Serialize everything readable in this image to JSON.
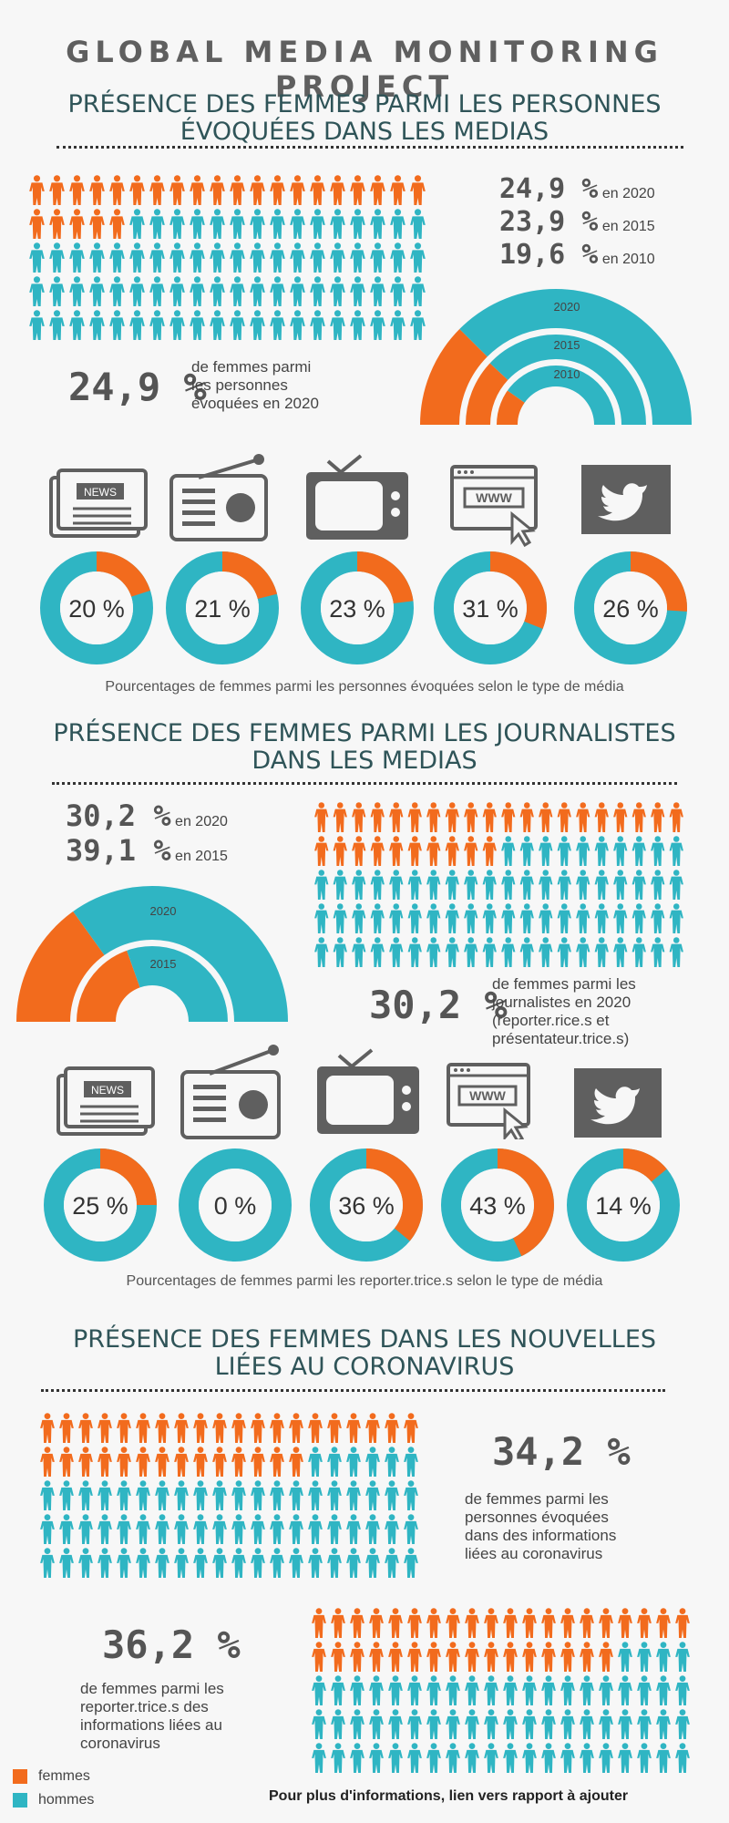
{
  "colors": {
    "women": "#f26b1d",
    "men": "#2fb5c3",
    "dark": "#5f5f5f",
    "text": "#444444"
  },
  "header": {
    "title": "GLOBAL MEDIA MONITORING PROJECT"
  },
  "section1": {
    "title_line1": "PRÉSENCE DES FEMMES PARMI LES PERSONNES",
    "title_line2": "ÉVOQUÉES DANS LES MEDIAS",
    "years": [
      {
        "value": "24,9 %",
        "label": "en 2020"
      },
      {
        "value": "23,9 %",
        "label": "en 2015"
      },
      {
        "value": "19,6 %",
        "label": "en 2010"
      }
    ],
    "big_value": "24,9 %",
    "desc_line1": "de femmes parmi",
    "desc_line2": "les personnes",
    "desc_line3": "évoquées en 2020",
    "caption": "Pourcentages de femmes parmi les personnes évoquées selon le type de média"
  },
  "section2": {
    "title_line1": "PRÉSENCE DES FEMMES PARMI LES JOURNALISTES",
    "title_line2": "DANS LES MEDIAS",
    "years": [
      {
        "value": "30,2 %",
        "label": "en 2020"
      },
      {
        "value": "39,1 %",
        "label": "en 2015"
      }
    ],
    "big_value": "30,2 %",
    "desc_line1": "de femmes parmi les",
    "desc_line2": "journalistes en 2020",
    "desc_line3": "(reporter.rice.s et",
    "desc_line4": "présentateur.trice.s)",
    "caption": "Pourcentages de femmes parmi les reporter.trice.s selon le type de média"
  },
  "section3": {
    "title_line1": "PRÉSENCE DES FEMMES DANS LES NOUVELLES",
    "title_line2": "LIÉES AU CORONAVIRUS",
    "value1": "34,2 %",
    "desc1_line1": "de femmes parmi les",
    "desc1_line2": "personnes évoquées",
    "desc1_line3": "dans des informations",
    "desc1_line4": "liées au coronavirus",
    "value2": "36,2 %",
    "desc2_line1": "de femmes parmi les",
    "desc2_line2": "reporter.trice.s des",
    "desc2_line3": "informations liées au",
    "desc2_line4": "coronavirus"
  },
  "legend": {
    "women": "femmes",
    "men": "hommes"
  },
  "footer": "Pour plus d'informations, lien vers rapport à ajouter",
  "chart_data": [
    {
      "type": "pictogram",
      "title": "",
      "women_percent": 24.9,
      "series": [
        {
          "name": "femmes",
          "color": "#f26b1d"
        },
        {
          "name": "hommes",
          "color": "#2fb5c3"
        }
      ]
    },
    {
      "type": "semi-donut",
      "categories": [
        "2020",
        "2015",
        "2010"
      ],
      "values": [
        24.9,
        23.9,
        19.6
      ]
    },
    {
      "type": "donut",
      "categories": [
        "newspaper",
        "radio",
        "television",
        "internet",
        "twitter"
      ],
      "values": [
        20,
        21,
        23,
        31,
        26
      ],
      "labels": [
        "20 %",
        "21 %",
        "23 %",
        "31 %",
        "26 %"
      ]
    },
    {
      "type": "semi-donut",
      "categories": [
        "2020",
        "2015"
      ],
      "values": [
        30.2,
        39.1
      ]
    },
    {
      "type": "pictogram",
      "women_percent": 30.2
    },
    {
      "type": "donut",
      "categories": [
        "newspaper",
        "radio",
        "television",
        "internet",
        "twitter"
      ],
      "values": [
        25,
        0,
        36,
        43,
        14
      ],
      "labels": [
        "25 %",
        "0 %",
        "36 %",
        "43 %",
        "14 %"
      ]
    },
    {
      "type": "pictogram",
      "women_percent": 34.2
    },
    {
      "type": "pictogram",
      "women_percent": 36.2
    }
  ]
}
